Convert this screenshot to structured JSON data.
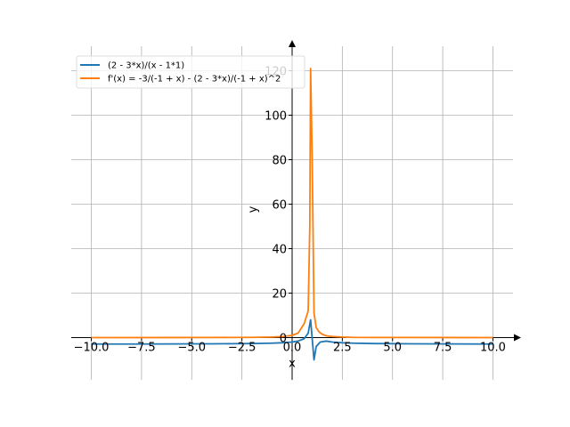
{
  "chart_data": {
    "type": "line",
    "title": "",
    "xlabel": "x",
    "ylabel": "y",
    "xlim": [
      -11.0,
      11.0
    ],
    "ylim": [
      -19.0,
      131.0
    ],
    "grid": true,
    "legend_position": "top-left",
    "x_ticks": [
      -10.0,
      -7.5,
      -5.0,
      -2.5,
      0.0,
      2.5,
      5.0,
      7.5,
      10.0
    ],
    "x_tick_labels": [
      "−10.0",
      "−7.5",
      "−5.0",
      "−2.5",
      "0.0",
      "2.5",
      "5.0",
      "7.5",
      "10.0"
    ],
    "y_ticks": [
      0,
      20,
      40,
      60,
      80,
      100,
      120
    ],
    "y_tick_labels": [
      "0",
      "20",
      "40",
      "60",
      "80",
      "100",
      "120"
    ],
    "series": [
      {
        "name": "(2 - 3*x)/(x - 1*1)",
        "color": "#1f77b4",
        "x": [
          -10,
          -8,
          -6,
          -4,
          -3,
          -2,
          -1.5,
          -1,
          -0.5,
          0,
          0.3,
          0.6,
          0.8,
          0.92,
          1.09,
          1.2,
          1.4,
          1.7,
          2,
          2.5,
          3,
          4,
          6,
          8,
          10
        ],
        "y": [
          -2.91,
          -2.89,
          -2.86,
          -2.8,
          -2.75,
          -2.67,
          -2.6,
          -2.5,
          -2.33,
          -2.0,
          -1.57,
          -0.5,
          2.0,
          8.0,
          -10.0,
          -4.0,
          -2.0,
          -1.57,
          -2.0,
          -2.33,
          -2.5,
          -2.67,
          -2.8,
          -2.86,
          -2.89
        ]
      },
      {
        "name": "f'(x) = -3/(-1 + x) - (2 - 3*x)/(-1 + x)^2",
        "color": "#ff7f0e",
        "x": [
          -10,
          -6,
          -4,
          -2,
          -1,
          -0.5,
          0,
          0.3,
          0.6,
          0.8,
          0.88,
          0.92,
          1.0,
          1.09,
          1.2,
          1.35,
          1.5,
          1.7,
          2,
          2.5,
          3,
          4,
          6,
          10
        ],
        "y": [
          0.01,
          0.02,
          0.04,
          0.11,
          0.25,
          0.44,
          1.0,
          2.04,
          6.25,
          12.0,
          50.0,
          121.0,
          80.0,
          11.0,
          4.5,
          2.5,
          1.5,
          0.8,
          0.5,
          0.25,
          0.11,
          0.06,
          0.04,
          0.01
        ]
      }
    ]
  }
}
